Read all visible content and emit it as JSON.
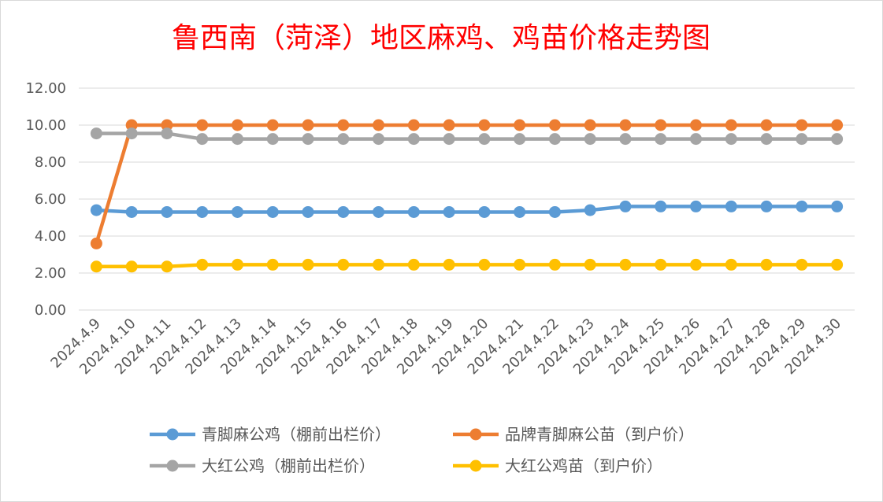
{
  "chart_data": {
    "type": "line",
    "title": "鲁西南（菏泽）地区麻鸡、鸡苗价格走势图",
    "xlabel": "",
    "ylabel": "",
    "ylim": [
      0,
      12
    ],
    "yticks": [
      "0.00",
      "2.00",
      "4.00",
      "6.00",
      "8.00",
      "10.00",
      "12.00"
    ],
    "grid": true,
    "legend_position": "bottom",
    "categories": [
      "2024.4.9",
      "2024.4.10",
      "2024.4.11",
      "2024.4.12",
      "2024.4.13",
      "2024.4.14",
      "2024.4.15",
      "2024.4.16",
      "2024.4.17",
      "2024.4.18",
      "2024.4.19",
      "2024.4.20",
      "2024.4.21",
      "2024.4.22",
      "2024.4.23",
      "2024.4.24",
      "2024.4.25",
      "2024.4.26",
      "2024.4.27",
      "2024.4.28",
      "2024.4.29",
      "2024.4.30"
    ],
    "series": [
      {
        "name": "青脚麻公鸡（棚前出栏价）",
        "color": "#5b9bd5",
        "values": [
          5.4,
          5.3,
          5.3,
          5.3,
          5.3,
          5.3,
          5.3,
          5.3,
          5.3,
          5.3,
          5.3,
          5.3,
          5.3,
          5.3,
          5.4,
          5.6,
          5.6,
          5.6,
          5.6,
          5.6,
          5.6,
          5.6
        ]
      },
      {
        "name": "品牌青脚麻公苗（到户价）",
        "color": "#ed7d31",
        "values": [
          3.6,
          10.0,
          10.0,
          10.0,
          10.0,
          10.0,
          10.0,
          10.0,
          10.0,
          10.0,
          10.0,
          10.0,
          10.0,
          10.0,
          10.0,
          10.0,
          10.0,
          10.0,
          10.0,
          10.0,
          10.0,
          10.0
        ]
      },
      {
        "name": "大红公鸡（棚前出栏价）",
        "color": "#a5a5a5",
        "values": [
          9.55,
          9.55,
          9.55,
          9.25,
          9.25,
          9.25,
          9.25,
          9.25,
          9.25,
          9.25,
          9.25,
          9.25,
          9.25,
          9.25,
          9.25,
          9.25,
          9.25,
          9.25,
          9.25,
          9.25,
          9.25,
          9.25
        ]
      },
      {
        "name": "大红公鸡苗（到户价）",
        "color": "#ffc000",
        "values": [
          2.35,
          2.35,
          2.35,
          2.45,
          2.45,
          2.45,
          2.45,
          2.45,
          2.45,
          2.45,
          2.45,
          2.45,
          2.45,
          2.45,
          2.45,
          2.45,
          2.45,
          2.45,
          2.45,
          2.45,
          2.45,
          2.45
        ]
      }
    ]
  }
}
